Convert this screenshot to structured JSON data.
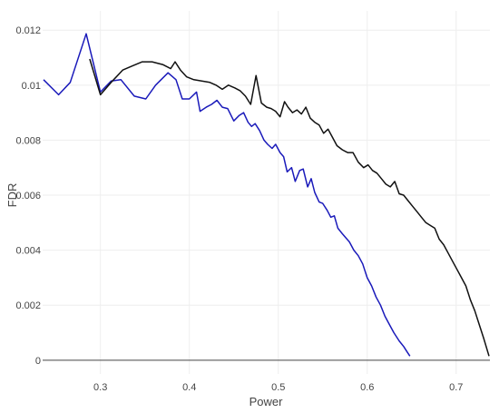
{
  "chart_data": {
    "type": "line",
    "title": "",
    "xlabel": "Power",
    "ylabel": "FDR",
    "xlim": [
      0.235,
      0.738
    ],
    "ylim": [
      -0.0005,
      0.0127
    ],
    "xticks": [
      0.3,
      0.4,
      0.5,
      0.6,
      0.7
    ],
    "xtick_labels": [
      "0.3",
      "0.4",
      "0.5",
      "0.6",
      "0.7"
    ],
    "yticks": [
      0,
      0.002,
      0.004,
      0.006,
      0.008,
      0.01,
      0.012
    ],
    "ytick_labels": [
      "0",
      "0.002",
      "0.004",
      "0.006",
      "0.008",
      "0.01",
      "0.012"
    ],
    "grid": true,
    "legend": "none",
    "series": [
      {
        "color": "#1a1aba",
        "x": [
          0.236,
          0.253,
          0.266,
          0.284,
          0.3,
          0.312,
          0.323,
          0.338,
          0.351,
          0.362,
          0.376,
          0.385,
          0.392,
          0.4,
          0.408,
          0.412,
          0.419,
          0.425,
          0.431,
          0.437,
          0.443,
          0.45,
          0.456,
          0.461,
          0.466,
          0.47,
          0.474,
          0.479,
          0.484,
          0.488,
          0.493,
          0.497,
          0.502,
          0.506,
          0.51,
          0.515,
          0.519,
          0.524,
          0.528,
          0.533,
          0.537,
          0.541,
          0.546,
          0.55,
          0.555,
          0.559,
          0.563,
          0.567,
          0.572,
          0.576,
          0.58,
          0.585,
          0.59,
          0.595,
          0.6,
          0.605,
          0.61,
          0.615,
          0.62,
          0.625,
          0.63,
          0.636,
          0.641,
          0.645,
          0.648
        ],
        "y": [
          0.0102,
          0.00965,
          0.0101,
          0.01187,
          0.00975,
          0.01015,
          0.0102,
          0.0096,
          0.0095,
          0.01,
          0.01045,
          0.0102,
          0.0095,
          0.0095,
          0.00975,
          0.00905,
          0.0092,
          0.0093,
          0.00945,
          0.0092,
          0.00915,
          0.0087,
          0.0089,
          0.009,
          0.00865,
          0.0085,
          0.0086,
          0.00835,
          0.008,
          0.00785,
          0.0077,
          0.00785,
          0.00755,
          0.0074,
          0.00685,
          0.007,
          0.0065,
          0.0069,
          0.00695,
          0.0063,
          0.0066,
          0.0061,
          0.00575,
          0.0057,
          0.00545,
          0.0052,
          0.00525,
          0.0048,
          0.0046,
          0.00445,
          0.0043,
          0.004,
          0.0038,
          0.0035,
          0.003,
          0.0027,
          0.0023,
          0.002,
          0.0016,
          0.0013,
          0.001,
          0.0007,
          0.0005,
          0.0003,
          0.00015
        ]
      },
      {
        "color": "#111111",
        "x": [
          0.288,
          0.3,
          0.312,
          0.325,
          0.336,
          0.347,
          0.358,
          0.37,
          0.379,
          0.384,
          0.39,
          0.397,
          0.405,
          0.414,
          0.423,
          0.43,
          0.437,
          0.444,
          0.451,
          0.457,
          0.463,
          0.469,
          0.475,
          0.481,
          0.487,
          0.492,
          0.497,
          0.502,
          0.507,
          0.511,
          0.516,
          0.521,
          0.526,
          0.531,
          0.536,
          0.541,
          0.546,
          0.551,
          0.556,
          0.561,
          0.566,
          0.572,
          0.578,
          0.584,
          0.59,
          0.596,
          0.601,
          0.606,
          0.611,
          0.616,
          0.621,
          0.626,
          0.631,
          0.636,
          0.641,
          0.646,
          0.651,
          0.656,
          0.661,
          0.666,
          0.671,
          0.676,
          0.681,
          0.686,
          0.691,
          0.696,
          0.701,
          0.706,
          0.711,
          0.716,
          0.721,
          0.726,
          0.731,
          0.737
        ],
        "y": [
          0.01095,
          0.00965,
          0.0101,
          0.01055,
          0.0107,
          0.01085,
          0.01085,
          0.01075,
          0.0106,
          0.01085,
          0.01055,
          0.0103,
          0.0102,
          0.01015,
          0.0101,
          0.01,
          0.00985,
          0.01,
          0.0099,
          0.0098,
          0.0096,
          0.0093,
          0.01035,
          0.00935,
          0.0092,
          0.00915,
          0.00905,
          0.00885,
          0.0094,
          0.0092,
          0.009,
          0.0091,
          0.00895,
          0.0092,
          0.0088,
          0.00865,
          0.00855,
          0.00825,
          0.0084,
          0.0081,
          0.0078,
          0.00765,
          0.00755,
          0.00755,
          0.0072,
          0.007,
          0.0071,
          0.0069,
          0.0068,
          0.0066,
          0.0064,
          0.0063,
          0.0065,
          0.00605,
          0.006,
          0.0058,
          0.0056,
          0.0054,
          0.0052,
          0.005,
          0.0049,
          0.0048,
          0.0044,
          0.0042,
          0.0039,
          0.0036,
          0.0033,
          0.003,
          0.0027,
          0.0022,
          0.0018,
          0.0013,
          0.0008,
          0.00015
        ]
      }
    ]
  }
}
